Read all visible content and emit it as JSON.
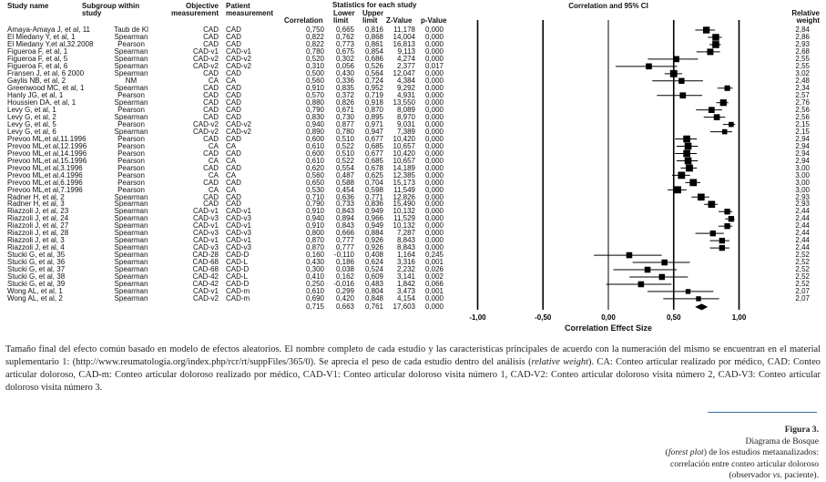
{
  "chart_data": {
    "type": "forest",
    "title": "Correlation and 95% CI",
    "xlabel": "Correlation Effect Size",
    "xlim": [
      -1,
      1
    ],
    "xticks": [
      "-1,00",
      "-0,50",
      "0,00",
      "0,50",
      "1,00"
    ],
    "xtick_values": [
      -1,
      -0.5,
      0,
      0.5,
      1
    ],
    "headers": {
      "study": "Study name",
      "subgroup": "Subgroup within study",
      "objective": "Objective measurement",
      "patient": "Patient measurement",
      "stats": "Statistics for each study",
      "correlation": "Correlation",
      "lower": "Lower limit",
      "upper": "Upper limit",
      "z": "Z-Value",
      "p": "p-Value",
      "weight": "Relative weight"
    },
    "rows": [
      [
        "Amaya-Amaya J, et al, 11",
        "Taub de Kl",
        "CAD",
        "CAD",
        "0,750",
        "0,665",
        "0,816",
        "11,178",
        "0,000",
        "2,84"
      ],
      [
        "El Miedany Y, et al, 1",
        "Spearman",
        "CAD",
        "CAD",
        "0,822",
        "0,762",
        "0,868",
        "14,004",
        "0,000",
        "2,86"
      ],
      [
        "El Miedany Y,et al,32.2008",
        "Pearson",
        "CAD",
        "CAD",
        "0,822",
        "0,773",
        "0,861",
        "16,813",
        "0,000",
        "2,93"
      ],
      [
        "Figueroa F, et al, 1",
        "Spearman",
        "CAD-v1",
        "CAD-v1",
        "0,780",
        "0,675",
        "0,854",
        "9,113",
        "0,000",
        "2,68"
      ],
      [
        "Figueroa F, et al, 5",
        "Spearman",
        "CAD-v2",
        "CAD-v2",
        "0,520",
        "0,302",
        "0,686",
        "4,274",
        "0,000",
        "2,55"
      ],
      [
        "Figueroa F, et al, 6",
        "Spearman",
        "CAD-v2",
        "CAD-v2",
        "0,310",
        "0,056",
        "0,526",
        "2,377",
        "0,017",
        "2,55"
      ],
      [
        "Fransen J, et al, 6 2000",
        "Spearman",
        "CAD",
        "CAD",
        "0,500",
        "0,430",
        "0,564",
        "12,047",
        "0,000",
        "3,02"
      ],
      [
        "Gaylis NB, et al, 2",
        "NM",
        "CA",
        "CA",
        "0,560",
        "0,336",
        "0,724",
        "4,384",
        "0,000",
        "2,48"
      ],
      [
        "Greenwood MC, et al, 1",
        "Spearman",
        "CAD",
        "CAD",
        "0,910",
        "0,835",
        "0,952",
        "9,292",
        "0,000",
        "2,34"
      ],
      [
        "Hanly JG, et al, 1",
        "Pearson",
        "CAD",
        "CAD",
        "0,570",
        "0,372",
        "0,719",
        "4,931",
        "0,000",
        "2,57"
      ],
      [
        "Houssien DA, et al, 1",
        "Spearman",
        "CAD",
        "CAD",
        "0,880",
        "0,826",
        "0,918",
        "13,550",
        "0,000",
        "2,76"
      ],
      [
        "Levy G, et al, 1",
        "Pearson",
        "CAD",
        "CAD",
        "0,790",
        "0,671",
        "0,870",
        "8,089",
        "0,000",
        "2,56"
      ],
      [
        "Levy G, et al, 2",
        "Spearman",
        "CAD",
        "CAD",
        "0,830",
        "0,730",
        "0,895",
        "8,970",
        "0,000",
        "2,56"
      ],
      [
        "Levy G, et al, 5",
        "Pearson",
        "CAD-v2",
        "CAD-v2",
        "0,940",
        "0,877",
        "0,971",
        "9,031",
        "0,000",
        "2,15"
      ],
      [
        "Levy G, et al, 6",
        "Spearman",
        "CAD-v2",
        "CAD-v2",
        "0,890",
        "0,780",
        "0,947",
        "7,389",
        "0,000",
        "2,15"
      ],
      [
        "Prevoo ML,et al,11.1996",
        "Pearson",
        "CAD",
        "CAD",
        "0,600",
        "0,510",
        "0,677",
        "10,420",
        "0,000",
        "2,94"
      ],
      [
        "Prevoo ML,et al,12.1996",
        "Pearson",
        "CA",
        "CA",
        "0,610",
        "0,522",
        "0,685",
        "10,657",
        "0,000",
        "2,94"
      ],
      [
        "Prevoo ML,et al,14.1996",
        "Pearson",
        "CAD",
        "CAD",
        "0,600",
        "0,510",
        "0,677",
        "10,420",
        "0,000",
        "2,94"
      ],
      [
        "Prevoo ML,et al,15.1996",
        "Pearson",
        "CA",
        "CA",
        "0,610",
        "0,522",
        "0,685",
        "10,657",
        "0,000",
        "2,94"
      ],
      [
        "Prevoo ML,et al,3.1996",
        "Pearson",
        "CAD",
        "CAD",
        "0,620",
        "0,554",
        "0,678",
        "14,189",
        "0,000",
        "3,00"
      ],
      [
        "Prevoo ML,et al,4.1996",
        "Pearson",
        "CA",
        "CA",
        "0,560",
        "0,487",
        "0,625",
        "12,385",
        "0,000",
        "3,00"
      ],
      [
        "Prevoo ML,et al,6.1996",
        "Pearson",
        "CAD",
        "CAD",
        "0,650",
        "0,588",
        "0,704",
        "15,173",
        "0,000",
        "3,00"
      ],
      [
        "Prevoo ML,et al,7.1996",
        "Pearson",
        "CA",
        "CA",
        "0,530",
        "0,454",
        "0,598",
        "11,549",
        "0,000",
        "3,00"
      ],
      [
        "Radner  H, et al, 2",
        "Spearman",
        "CAD",
        "CAD",
        "0,710",
        "0,636",
        "0,771",
        "12,826",
        "0,000",
        "2,93"
      ],
      [
        "Radner  H, et al, 3",
        "Spearman",
        "CAD",
        "CAD",
        "0,790",
        "0,733",
        "0,836",
        "15,490",
        "0,000",
        "2,93"
      ],
      [
        "Riazzoli J, et al, 23",
        "Spearman",
        "CAD-v1",
        "CAD-v1",
        "0,910",
        "0,843",
        "0,949",
        "10,132",
        "0,000",
        "2,44"
      ],
      [
        "Riazzoli J, et al, 24",
        "Spearman",
        "CAD-v3",
        "CAD-v3",
        "0,940",
        "0,894",
        "0,966",
        "11,529",
        "0,000",
        "2,44"
      ],
      [
        "Riazzoli J, et al, 27",
        "Spearman",
        "CAD-v1",
        "CAD-v1",
        "0,910",
        "0,843",
        "0,949",
        "10,132",
        "0,000",
        "2,44"
      ],
      [
        "Riazzoli J, et al, 28",
        "Spearman",
        "CAD-v3",
        "CAD-v3",
        "0,800",
        "0,666",
        "0,884",
        "7,287",
        "0,000",
        "2,44"
      ],
      [
        "Riazzoli J, et al, 3",
        "Spearman",
        "CAD-v1",
        "CAD-v1",
        "0,870",
        "0,777",
        "0,926",
        "8,843",
        "0,000",
        "2,44"
      ],
      [
        "Riazzoli J, et al, 4",
        "Spearman",
        "CAD-v3",
        "CAD-v3",
        "0,870",
        "0,777",
        "0,926",
        "8,843",
        "0,000",
        "2,44"
      ],
      [
        "Stucki G, et al, 35",
        "Spearman",
        "CAD-28",
        "CAD-D",
        "0,160",
        "-0,110",
        "0,408",
        "1,164",
        "0,245",
        "2,52"
      ],
      [
        "Stucki G, et al, 36",
        "Spearman",
        "CAD-68",
        "CAD-L",
        "0,430",
        "0,186",
        "0,624",
        "3,316",
        "0,001",
        "2,52"
      ],
      [
        "Stucki G, et al, 37",
        "Spearman",
        "CAD-68",
        "CAD-D",
        "0,300",
        "0,038",
        "0,524",
        "2,232",
        "0,026",
        "2,52"
      ],
      [
        "Stucki G, et al, 38",
        "Spearman",
        "CAD-42",
        "CAD-L",
        "0,410",
        "0,162",
        "0,609",
        "3,141",
        "0,002",
        "2,52"
      ],
      [
        "Stucki G, et al, 39",
        "Spearman",
        "CAD-42",
        "CAD-D",
        "0,250",
        "-0,016",
        "0,483",
        "1,842",
        "0,066",
        "2,52"
      ],
      [
        "Wong AL, et al, 1",
        "Spearman",
        "CAD-v1",
        "CAD-m",
        "0,610",
        "0,299",
        "0,804",
        "3,473",
        "0,001",
        "2,07"
      ],
      [
        "Wong AL, et al, 2",
        "Spearman",
        "CAD-v2",
        "CAD-m",
        "0,690",
        "0,420",
        "0,848",
        "4,154",
        "0,000",
        "2,07"
      ]
    ],
    "summary": [
      "0,715",
      "0,663",
      "0,761",
      "17,603",
      "0,000"
    ]
  },
  "caption": {
    "part1": "Tamaño final del efecto común basado en modelo de efectos aleatorios. El nombre completo de cada estudio y las características principales de acuerdo con la numeración del mismo se encuentran en el material suplementario 1: (http://www.reumatologia.org/index.php/rcr/rt/suppFiles/365/0). Se aprecia el peso de cada estudio dentro del análisis (",
    "italic": "relative weight",
    "part2": "). CA: Conteo articular realizado por médico, CAD: Conteo articular doloroso, CAD-m: Conteo articular doloroso realizado por médico, CAD-V1: Conteo articular doloroso visita número 1, CAD-V2: Conteo articular doloroso visita número 2, CAD-V3: Conteo articular doloroso visita número 3."
  },
  "figure": {
    "label": "Figura 3.",
    "line1": "Diagrama de Bosque",
    "italic": "forest plot",
    "line2": ") de los estudios metaanalizados: correlación entre conteo articular doloroso (observador ",
    "vs": "vs.",
    "line3": " paciente)."
  }
}
